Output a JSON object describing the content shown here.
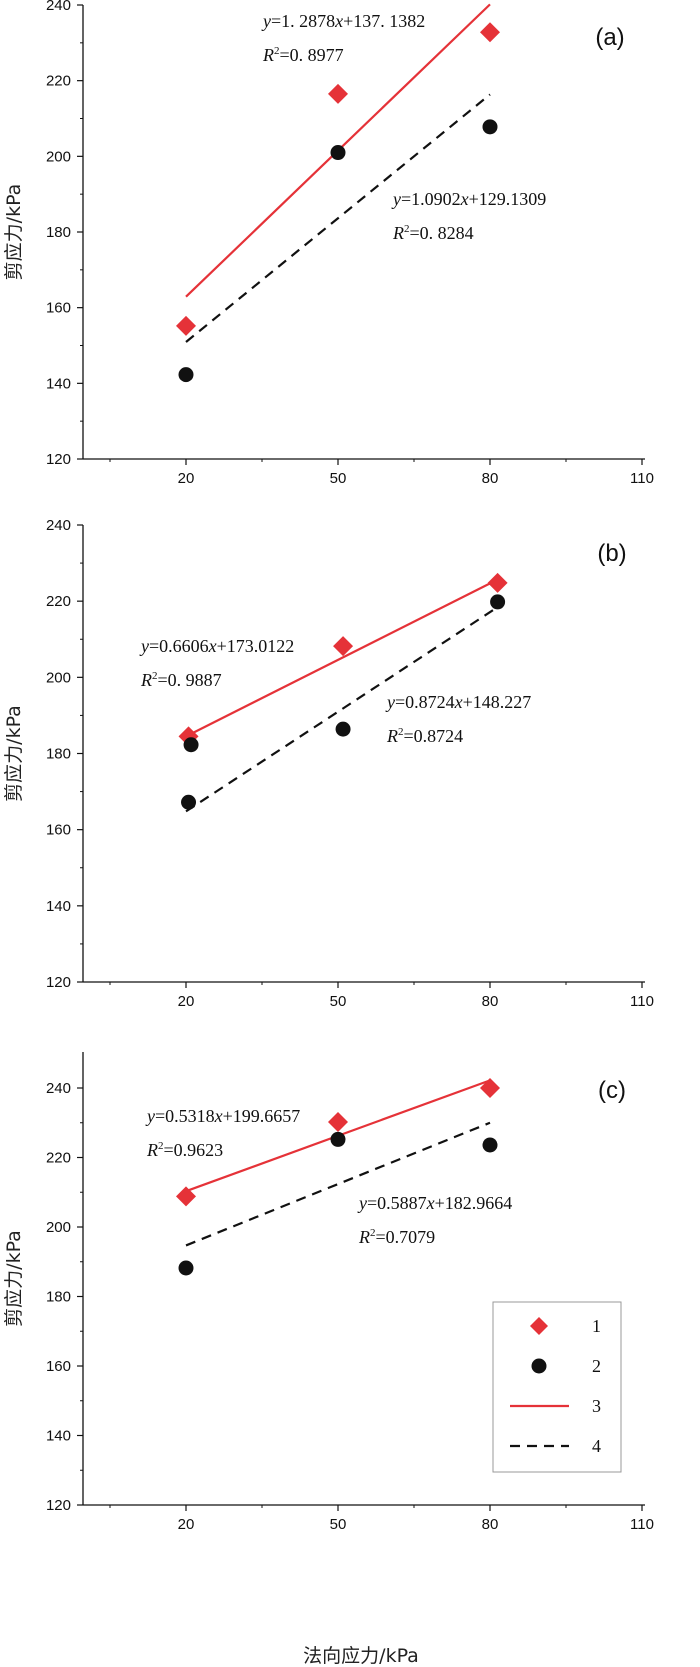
{
  "chart_data": [
    {
      "type": "scatter",
      "panel_label": "(a)",
      "ylabel": "剪应力/kPa",
      "xlabel": "",
      "xlim": [
        0,
        110
      ],
      "ylim": [
        120,
        240
      ],
      "xticks": [
        20,
        50,
        80,
        110
      ],
      "xtick_labels": [
        "20",
        "50",
        "80",
        "110"
      ],
      "yticks": [
        120,
        140,
        160,
        180,
        200,
        220,
        240
      ],
      "ytick_labels": [
        "120",
        "140",
        "160",
        "180",
        "200",
        "220",
        "240"
      ],
      "series": [
        {
          "name": "1",
          "marker": "diamond",
          "color": "#e53238",
          "points": [
            [
              20,
              155.2
            ],
            [
              50,
              216.5
            ],
            [
              80,
              232.8
            ]
          ]
        },
        {
          "name": "2",
          "marker": "circle",
          "color": "#111111",
          "points": [
            [
              20,
              142.3
            ],
            [
              50,
              201.0
            ],
            [
              80,
              207.8
            ]
          ]
        }
      ],
      "fits": [
        {
          "name": "3",
          "style": "solid",
          "color": "#e53238",
          "slope": 1.2878,
          "intercept": 137.1382,
          "x_range": [
            20,
            80
          ],
          "equation": {
            "y": "y",
            "mid": "=1. 2878",
            "x": "x",
            "rest": "+137. 1382",
            "r": "R",
            "exp": "2",
            "r2": "=0. 8977"
          }
        },
        {
          "name": "4",
          "style": "dashed",
          "color": "#111111",
          "slope": 1.0902,
          "intercept": 129.1309,
          "x_range": [
            20,
            80
          ],
          "equation": {
            "y": "y",
            "mid": "=1.0902",
            "x": "x",
            "rest": "+129.1309",
            "r": "R",
            "exp": "2",
            "r2": "=0. 8284"
          }
        }
      ]
    },
    {
      "type": "scatter",
      "panel_label": "(b)",
      "ylabel": "剪应力/kPa",
      "xlabel": "",
      "xlim": [
        0,
        110
      ],
      "ylim": [
        120,
        240
      ],
      "xticks": [
        20,
        50,
        80,
        110
      ],
      "xtick_labels": [
        "20",
        "50",
        "80",
        "110"
      ],
      "yticks": [
        120,
        140,
        160,
        180,
        200,
        220,
        240
      ],
      "ytick_labels": [
        "120",
        "140",
        "160",
        "180",
        "200",
        "220",
        "240"
      ],
      "series": [
        {
          "name": "1",
          "marker": "diamond",
          "color": "#e53238",
          "points": [
            [
              20.5,
              184.5
            ],
            [
              51,
              208.2
            ],
            [
              81.5,
              224.8
            ]
          ]
        },
        {
          "name": "2",
          "marker": "circle",
          "color": "#111111",
          "points": [
            [
              20.5,
              167.2
            ],
            [
              21,
              182.3
            ],
            [
              51,
              186.4
            ],
            [
              81.5,
              219.8
            ]
          ]
        }
      ],
      "fits": [
        {
          "name": "3",
          "style": "solid",
          "color": "#e53238",
          "slope": 0.6606,
          "intercept": 173.0122,
          "x_range": [
            20,
            80
          ],
          "draw_from": [
            20,
            184.5
          ],
          "draw_to": [
            80.5,
            225
          ],
          "equation": {
            "y": "y",
            "mid": "=0.6606",
            "x": "x",
            "rest": "+173.0122",
            "r": "R",
            "exp": "2",
            "r2": "=0. 9887"
          }
        },
        {
          "name": "4",
          "style": "dashed",
          "color": "#111111",
          "slope": 0.8724,
          "intercept": 148.227,
          "x_range": [
            20,
            80
          ],
          "draw_from": [
            20,
            164.8
          ],
          "draw_to": [
            81,
            218
          ],
          "equation": {
            "y": "y",
            "mid": "=0.8724",
            "x": "x",
            "rest": "+148.227",
            "r": "R",
            "exp": "2",
            "r2": "=0.8724"
          }
        }
      ]
    },
    {
      "type": "scatter",
      "panel_label": "(c)",
      "ylabel": "剪应力/kPa",
      "xlabel": "法向应力/kPa",
      "xlim": [
        0,
        110
      ],
      "ylim": [
        120,
        250
      ],
      "xticks": [
        20,
        50,
        80,
        110
      ],
      "xtick_labels": [
        "20",
        "50",
        "80",
        "110"
      ],
      "yticks": [
        120,
        140,
        160,
        180,
        200,
        220,
        240
      ],
      "ytick_labels": [
        "120",
        "140",
        "160",
        "180",
        "200",
        "220",
        "240"
      ],
      "series": [
        {
          "name": "1",
          "marker": "diamond",
          "color": "#e53238",
          "points": [
            [
              20,
              208.8
            ],
            [
              50,
              230.2
            ],
            [
              80,
              240.0
            ]
          ]
        },
        {
          "name": "2",
          "marker": "circle",
          "color": "#111111",
          "points": [
            [
              20,
              188.2
            ],
            [
              50,
              225.2
            ],
            [
              80,
              223.6
            ]
          ]
        }
      ],
      "fits": [
        {
          "name": "3",
          "style": "solid",
          "color": "#e53238",
          "slope": 0.5318,
          "intercept": 199.6657,
          "x_range": [
            20,
            80
          ],
          "draw_from": [
            20,
            210.3
          ],
          "draw_to": [
            80,
            242.2
          ],
          "equation": {
            "y": "y",
            "mid": "=0.5318",
            "x": "x",
            "rest": "+199.6657",
            "r": "R",
            "exp": "2",
            "r2": "=0.9623"
          }
        },
        {
          "name": "4",
          "style": "dashed",
          "color": "#111111",
          "slope": 0.5887,
          "intercept": 182.9664,
          "x_range": [
            20,
            80
          ],
          "draw_from": [
            20,
            194.7
          ],
          "draw_to": [
            80,
            230
          ],
          "equation": {
            "y": "y",
            "mid": "=0.5887",
            "x": "x",
            "rest": "+182.9664",
            "r": "R",
            "exp": "2",
            "r2": "=0.7079"
          }
        }
      ]
    }
  ],
  "legend": {
    "entries": [
      {
        "label": "1",
        "kind": "diamond",
        "color": "#e53238"
      },
      {
        "label": "2",
        "kind": "circle",
        "color": "#111111"
      },
      {
        "label": "3",
        "kind": "solid",
        "color": "#e53238"
      },
      {
        "label": "4",
        "kind": "dashed",
        "color": "#111111"
      }
    ]
  }
}
